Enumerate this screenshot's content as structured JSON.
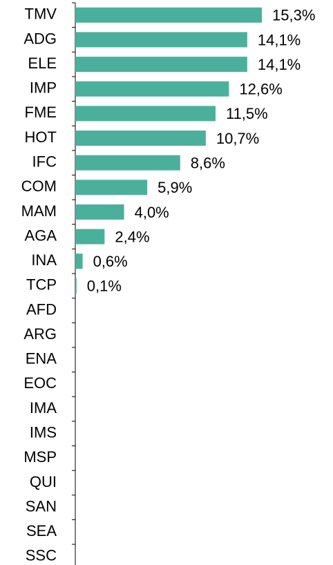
{
  "chart_data": {
    "type": "hbar",
    "categories": [
      "TMV",
      "ADG",
      "ELE",
      "IMP",
      "FME",
      "HOT",
      "IFC",
      "COM",
      "MAM",
      "AGA",
      "INA",
      "TCP",
      "AFD",
      "ARG",
      "ENA",
      "EOC",
      "IMA",
      "IMS",
      "MSP",
      "QUI",
      "SAN",
      "SEA",
      "SSC"
    ],
    "values": [
      15.3,
      14.1,
      14.1,
      12.6,
      11.5,
      10.7,
      8.6,
      5.9,
      4.0,
      2.4,
      0.6,
      0.1,
      null,
      null,
      null,
      null,
      null,
      null,
      null,
      null,
      null,
      null,
      null
    ],
    "value_labels": [
      "15,3%",
      "14,1%",
      "14,1%",
      "12,6%",
      "11,5%",
      "10,7%",
      "8,6%",
      "5,9%",
      "4,0%",
      "2,4%",
      "0,6%",
      "0,1%",
      null,
      null,
      null,
      null,
      null,
      null,
      null,
      null,
      null,
      null,
      null
    ],
    "color": "#4bb09b",
    "xlim": [
      0,
      20
    ]
  }
}
